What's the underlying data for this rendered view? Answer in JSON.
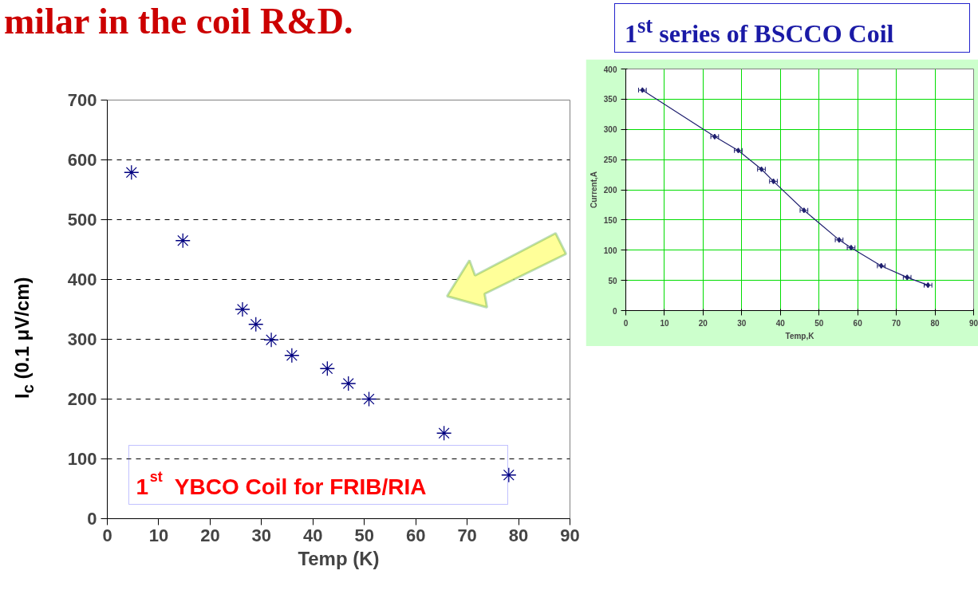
{
  "chart_data": [
    {
      "type": "scatter",
      "xlabel": "Temp (K)",
      "ylabel": "I$_{c}$ (0.1 μV/cm)",
      "marker": "cross",
      "grid": "y",
      "x": [
        4.7,
        14.7,
        26.3,
        28.9,
        31.9,
        35.9,
        42.8,
        46.9,
        50.9,
        65.5,
        78.1
      ],
      "series": [
        {
          "color": "#000080",
          "values": [
            579,
            465,
            350,
            325,
            299,
            273,
            251,
            226,
            200,
            143,
            73
          ]
        }
      ],
      "xlim": [
        0,
        90
      ],
      "xticks": [
        0,
        10,
        20,
        30,
        40,
        50,
        60,
        70,
        80,
        90
      ],
      "ylim": [
        0,
        700
      ],
      "yticks": [
        0,
        100,
        200,
        300,
        400,
        500,
        600,
        700
      ],
      "annotations": [
        "milar in the coil R&D.",
        "1$^{st}$ YBCO Coil for FRIB/RIA"
      ]
    },
    {
      "type": "line",
      "title": "1$^{st}$ series of BSCCO Coil",
      "xlabel": "Temp,K",
      "ylabel": "Current,A",
      "marker": "diamond",
      "line_style": "solid",
      "grid": true,
      "x": [
        4.3,
        23.0,
        29.1,
        35.1,
        38.2,
        46.1,
        55.2,
        58.3,
        66.1,
        72.8,
        78.2
      ],
      "series": [
        {
          "color": "#1f1f6f",
          "values": [
            365,
            288,
            265,
            234,
            214,
            166,
            117,
            104,
            74,
            55,
            42
          ],
          "xerrors": [
            1,
            1,
            1,
            1,
            1,
            1,
            1,
            1,
            1,
            1,
            1
          ]
        }
      ],
      "xlim": [
        0,
        90
      ],
      "xticks": [
        0,
        10,
        20,
        30,
        40,
        50,
        60,
        70,
        80,
        90
      ],
      "ylim": [
        0,
        400
      ],
      "yticks": [
        0,
        50,
        100,
        150,
        200,
        250,
        300,
        350,
        400
      ]
    }
  ]
}
